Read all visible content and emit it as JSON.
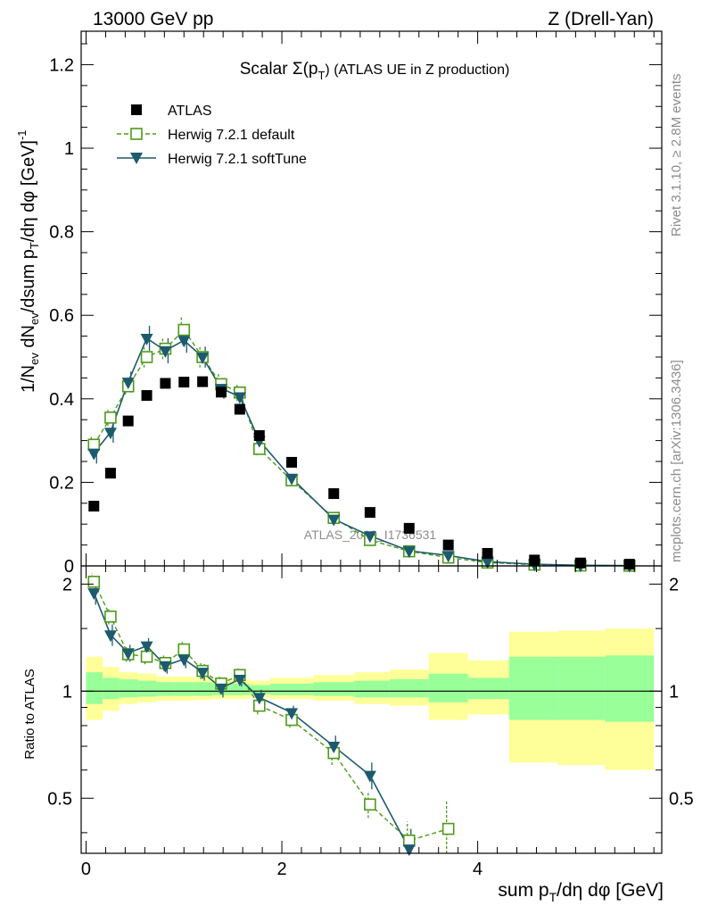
{
  "header": {
    "left": "13000 GeV pp",
    "right": "Z (Drell-Yan)"
  },
  "side": {
    "rivet": "Rivet 3.1.10, ≥ 2.8M events",
    "mcplots": "mcplots.cern.ch [arXiv:1306.3436]"
  },
  "watermark": "ATLAS_2019_I1736531",
  "colors": {
    "atlas": "#000000",
    "herwig_default": "#4d9a1a",
    "herwig_soft": "#1d5a6e",
    "band_inner": "#99ff99",
    "band_outer": "#ffff99"
  },
  "chart_data": [
    {
      "type": "scatter",
      "panel": "main",
      "title_main": "Scalar Σ(p",
      "title_sub": "T",
      "title_rest": ") (ATLAS UE in Z production)",
      "ylabel": "1/N_ev dN_ev/dsum p_T/dη dφ [GeV]^-1",
      "xlim": [
        -0.05,
        5.88
      ],
      "ylim": [
        0,
        1.28
      ],
      "yticks": [
        0,
        0.2,
        0.4,
        0.6,
        0.8,
        1,
        1.2
      ],
      "ytick_labels": [
        "0",
        "0.2",
        "0.4",
        "0.6",
        "0.8",
        "1",
        "1.2"
      ],
      "legend": {
        "position": "top-left",
        "entries": [
          "ATLAS",
          "Herwig 7.2.1 default",
          "Herwig 7.2.1 softTune"
        ]
      },
      "x": [
        0.08,
        0.25,
        0.43,
        0.62,
        0.81,
        1.0,
        1.19,
        1.38,
        1.57,
        1.77,
        2.1,
        2.53,
        2.9,
        3.3,
        3.7,
        4.1,
        4.58,
        5.05,
        5.55
      ],
      "series": [
        {
          "name": "ATLAS",
          "marker": "square-filled",
          "values": [
            0.143,
            0.222,
            0.347,
            0.408,
            0.437,
            0.44,
            0.441,
            0.416,
            0.375,
            0.312,
            0.248,
            0.173,
            0.128,
            0.09,
            0.05,
            0.03,
            0.014,
            0.007,
            0.004
          ]
        },
        {
          "name": "Herwig 7.2.1 default",
          "marker": "square-open",
          "line": "dashed",
          "values": [
            0.29,
            0.355,
            0.43,
            0.5,
            0.52,
            0.565,
            0.5,
            0.435,
            0.415,
            0.28,
            0.205,
            0.115,
            0.062,
            0.035,
            0.02,
            0.008,
            0.003,
            0.001,
            0.0005
          ],
          "errors": [
            0.02,
            0.02,
            0.02,
            0.025,
            0.025,
            0.03,
            0.025,
            0.025,
            0.02,
            0.015,
            0.01,
            0.008,
            0.005,
            0.004,
            0.003,
            0.002,
            0.001,
            0.0005,
            0.0003
          ]
        },
        {
          "name": "Herwig 7.2.1 softTune",
          "marker": "triangle-down",
          "line": "solid",
          "values": [
            0.27,
            0.32,
            0.44,
            0.545,
            0.515,
            0.54,
            0.5,
            0.425,
            0.405,
            0.3,
            0.21,
            0.112,
            0.072,
            0.036,
            0.025,
            0.01,
            0.004,
            0.0015,
            0.0008
          ],
          "errors": [
            0.025,
            0.025,
            0.025,
            0.03,
            0.03,
            0.03,
            0.025,
            0.025,
            0.02,
            0.015,
            0.01,
            0.008,
            0.006,
            0.004,
            0.003,
            0.002,
            0.001,
            0.0005,
            0.0003
          ]
        }
      ]
    },
    {
      "type": "scatter",
      "panel": "ratio",
      "xlabel_main": "sum p",
      "xlabel_sub": "T",
      "xlabel_rest": "/dη dφ [GeV]",
      "ylabel": "Ratio to ATLAS",
      "xlim": [
        -0.05,
        5.88
      ],
      "ylim": [
        0.35,
        2.25
      ],
      "yticks": [
        0.5,
        1,
        2
      ],
      "ytick_labels": [
        "0.5",
        "1",
        "2"
      ],
      "xticks": [
        0,
        2,
        4
      ],
      "xtick_labels": [
        "0",
        "2",
        "4"
      ],
      "bands": {
        "edges": [
          0,
          0.17,
          0.34,
          0.53,
          0.72,
          0.9,
          1.1,
          1.29,
          1.48,
          1.67,
          1.88,
          2.32,
          2.74,
          3.1,
          3.5,
          3.9,
          4.32,
          4.82,
          5.3,
          5.8
        ],
        "inner": [
          [
            0.92,
            1.13
          ],
          [
            0.95,
            1.09
          ],
          [
            0.96,
            1.08
          ],
          [
            0.965,
            1.07
          ],
          [
            0.97,
            1.06
          ],
          [
            0.97,
            1.06
          ],
          [
            0.97,
            1.06
          ],
          [
            0.975,
            1.05
          ],
          [
            0.975,
            1.05
          ],
          [
            0.98,
            1.04
          ],
          [
            0.975,
            1.05
          ],
          [
            0.97,
            1.06
          ],
          [
            0.96,
            1.07
          ],
          [
            0.96,
            1.08
          ],
          [
            0.93,
            1.12
          ],
          [
            0.95,
            1.09
          ],
          [
            0.83,
            1.25
          ],
          [
            0.83,
            1.25
          ],
          [
            0.82,
            1.26
          ]
        ],
        "outer": [
          [
            0.83,
            1.25
          ],
          [
            0.88,
            1.17
          ],
          [
            0.92,
            1.13
          ],
          [
            0.93,
            1.12
          ],
          [
            0.94,
            1.1
          ],
          [
            0.94,
            1.1
          ],
          [
            0.945,
            1.09
          ],
          [
            0.95,
            1.08
          ],
          [
            0.95,
            1.08
          ],
          [
            0.96,
            1.07
          ],
          [
            0.95,
            1.09
          ],
          [
            0.94,
            1.11
          ],
          [
            0.92,
            1.13
          ],
          [
            0.91,
            1.15
          ],
          [
            0.83,
            1.28
          ],
          [
            0.86,
            1.22
          ],
          [
            0.63,
            1.47
          ],
          [
            0.62,
            1.48
          ],
          [
            0.6,
            1.5
          ]
        ]
      },
      "x": [
        0.08,
        0.25,
        0.43,
        0.62,
        0.81,
        1.0,
        1.19,
        1.38,
        1.57,
        1.77,
        2.1,
        2.53,
        2.9,
        3.3,
        3.7
      ],
      "series": [
        {
          "name": "Herwig 7.2.1 default",
          "values": [
            2.03,
            1.62,
            1.27,
            1.25,
            1.2,
            1.31,
            1.14,
            1.05,
            1.11,
            0.91,
            0.83,
            0.67,
            0.48,
            0.38,
            0.41
          ],
          "errors": [
            0.12,
            0.08,
            0.06,
            0.06,
            0.06,
            0.07,
            0.06,
            0.06,
            0.05,
            0.05,
            0.04,
            0.05,
            0.04,
            0.05,
            0.08
          ]
        },
        {
          "name": "Herwig 7.2.1 softTune",
          "values": [
            1.89,
            1.44,
            1.28,
            1.34,
            1.18,
            1.23,
            1.13,
            1.02,
            1.08,
            0.96,
            0.87,
            0.7,
            0.58,
            0.36,
            null
          ],
          "errors": [
            0.14,
            0.1,
            0.07,
            0.07,
            0.06,
            0.07,
            0.06,
            0.06,
            0.05,
            0.05,
            0.04,
            0.05,
            0.05,
            0.05,
            null
          ]
        }
      ]
    }
  ]
}
